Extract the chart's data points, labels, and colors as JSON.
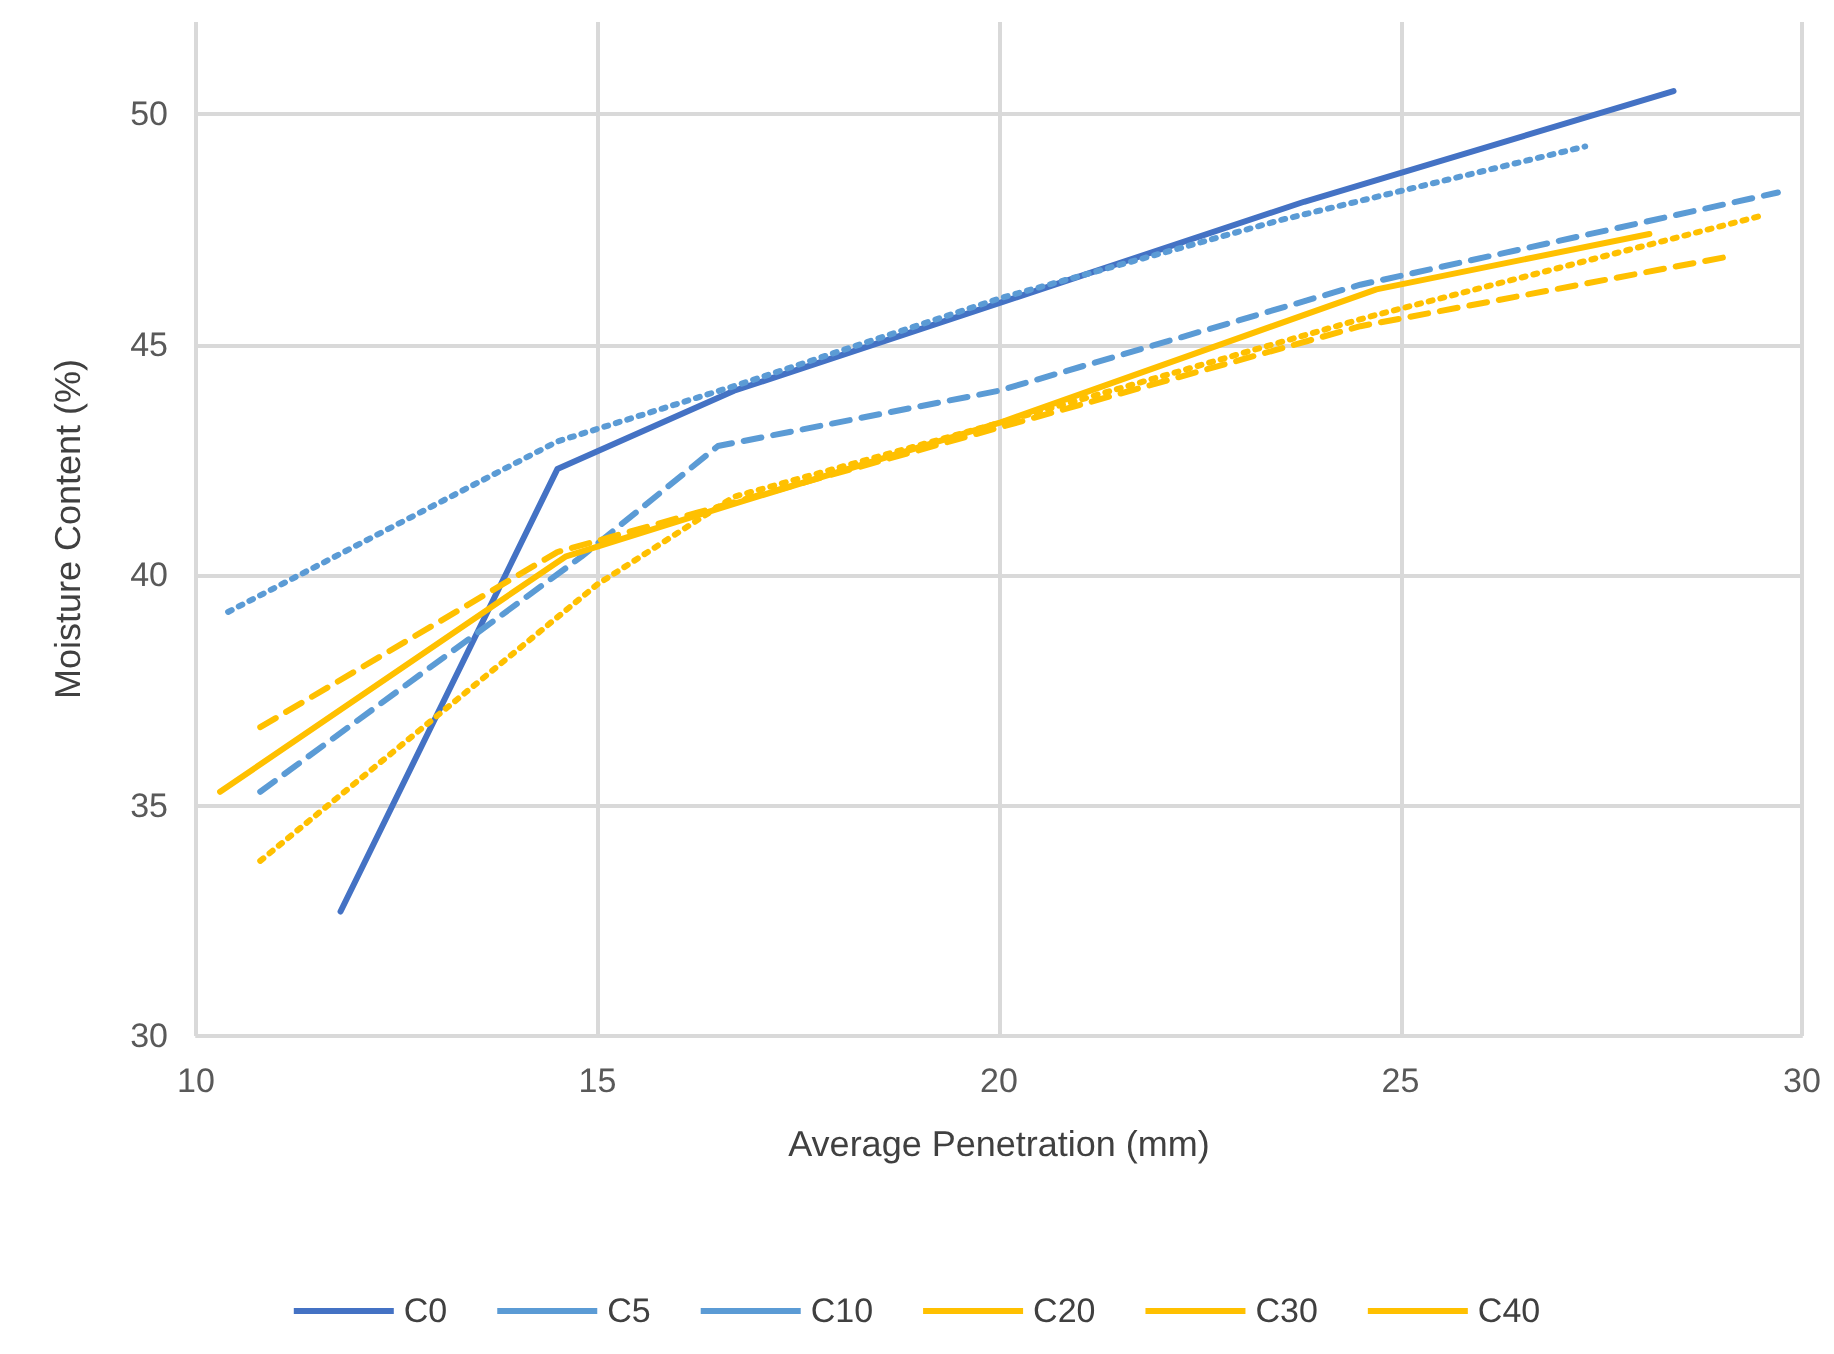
{
  "chart_data": {
    "type": "line",
    "xlabel": "Average Penetration (mm)",
    "ylabel": "Moisture Content (%)",
    "xlim": [
      10,
      30
    ],
    "xticks": [
      10,
      15,
      20,
      25,
      30
    ],
    "ylim": [
      30,
      52
    ],
    "yticks": [
      30,
      35,
      40,
      45,
      50
    ],
    "grid": true,
    "legend": "bottom",
    "marker": "none",
    "series": [
      {
        "name": "C0",
        "color": "#4472c4",
        "line_style": "solid",
        "x": [
          11.8,
          14.5,
          16.7,
          20,
          23.8,
          28.4
        ],
        "values": [
          32.7,
          42.3,
          44.0,
          45.9,
          48.1,
          50.5
        ]
      },
      {
        "name": "C5",
        "color": "#5b9bd5",
        "line_style": "dotted",
        "x": [
          10.4,
          14.5,
          16.7,
          20,
          23.5,
          27.3
        ],
        "values": [
          39.2,
          42.9,
          44.1,
          46.0,
          47.7,
          49.3
        ]
      },
      {
        "name": "C10",
        "color": "#5b9bd5",
        "line_style": "dashed",
        "x": [
          10.8,
          14.8,
          16.5,
          20,
          24.5,
          29.7
        ],
        "values": [
          35.3,
          40.4,
          42.8,
          44.0,
          46.3,
          48.3
        ]
      },
      {
        "name": "C20",
        "color": "#ffc000",
        "line_style": "solid",
        "x": [
          10.3,
          14.6,
          16.8,
          20,
          24.7,
          28.1
        ],
        "values": [
          35.3,
          40.4,
          41.6,
          43.3,
          46.2,
          47.4
        ]
      },
      {
        "name": "C30",
        "color": "#ffc000",
        "line_style": "dotted",
        "x": [
          10.8,
          15,
          16.7,
          20,
          24.6,
          29.5
        ],
        "values": [
          33.8,
          39.8,
          41.7,
          43.3,
          45.6,
          47.8
        ]
      },
      {
        "name": "C40",
        "color": "#ffc000",
        "line_style": "dashed",
        "x": [
          10.8,
          14.5,
          20,
          24.5,
          29.05
        ],
        "values": [
          36.7,
          40.5,
          43.2,
          45.4,
          46.9
        ]
      }
    ]
  }
}
